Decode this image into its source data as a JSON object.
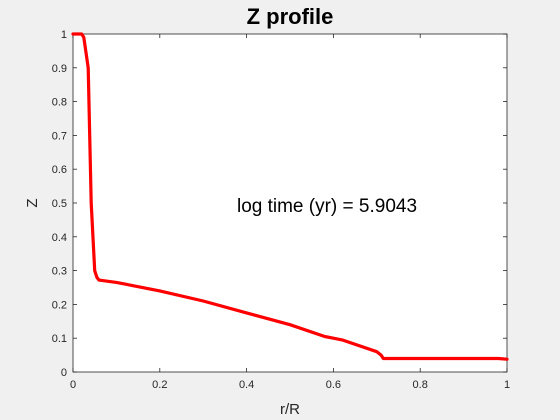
{
  "chart_data": {
    "type": "line",
    "title": "Z profile",
    "xlabel": "r/R",
    "ylabel": "Z",
    "xlim": [
      0,
      1
    ],
    "ylim": [
      0,
      1
    ],
    "xticks": [
      "0",
      "0.2",
      "0.4",
      "0.6",
      "0.8",
      "1"
    ],
    "yticks": [
      "0",
      "0.1",
      "0.2",
      "0.3",
      "0.4",
      "0.5",
      "0.6",
      "0.7",
      "0.8",
      "0.9",
      "1"
    ],
    "grid": false,
    "annotation": "log time (yr) = 5.9043",
    "series": [
      {
        "color": "#ff0000",
        "x": [
          0.0,
          0.02,
          0.025,
          0.035,
          0.042,
          0.05,
          0.055,
          0.06,
          0.1,
          0.2,
          0.3,
          0.4,
          0.5,
          0.58,
          0.6,
          0.62,
          0.7,
          0.71,
          0.715,
          0.8,
          0.9,
          0.98,
          1.0
        ],
        "y": [
          1.0,
          1.0,
          0.99,
          0.9,
          0.5,
          0.3,
          0.28,
          0.272,
          0.265,
          0.24,
          0.21,
          0.175,
          0.14,
          0.105,
          0.1,
          0.095,
          0.06,
          0.05,
          0.04,
          0.04,
          0.04,
          0.04,
          0.038
        ]
      }
    ]
  }
}
